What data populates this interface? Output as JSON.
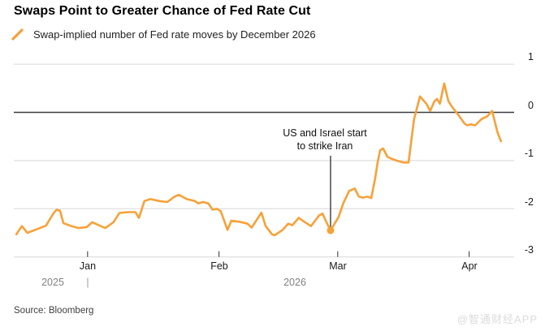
{
  "header": {
    "title": "Swaps Point to Greater Chance of Fed Rate Cut",
    "legend_label": "Swap-implied number of Fed rate moves by December 2026"
  },
  "colors": {
    "line": "#F7A139",
    "grid": "#D8D8D8",
    "zero_line": "#393B3D",
    "tick": "#2E2E2E",
    "annotation_line": "#3A3A3A"
  },
  "chart_data": {
    "type": "line",
    "title": "Swaps Point to Greater Chance of Fed Rate Cut",
    "series_name": "Swap-implied number of Fed rate moves by December 2026",
    "xlabel": "",
    "ylabel": "Swap-implied number of Fed rate moves",
    "x_unit": "days relative to Jan 1, 2026",
    "xlim": [
      -17.4,
      100.6
    ],
    "ylim": [
      -3.0,
      1.372
    ],
    "grid": "horizontal",
    "legend_position": "top-left",
    "y_ticks": [
      {
        "v": 1,
        "label": "1"
      },
      {
        "v": 0,
        "label": "0"
      },
      {
        "v": -1,
        "label": "-1"
      },
      {
        "v": -2,
        "label": "-2"
      },
      {
        "v": -3,
        "label": "-3"
      }
    ],
    "x_ticks": [
      {
        "d": 0,
        "label": "Jan"
      },
      {
        "d": 31,
        "label": "Feb"
      },
      {
        "d": 59,
        "label": "Mar"
      },
      {
        "d": 90,
        "label": "Apr"
      }
    ],
    "year_labels": [
      {
        "text": "2025"
      },
      {
        "text": "2026"
      }
    ],
    "year_divider": "|",
    "annotation": {
      "text": "US and Israel start\nto strike Iran",
      "d": 57.3,
      "v": -2.45,
      "line_top_v": -0.9
    },
    "points": [
      [
        -16.8,
        -2.53
      ],
      [
        -15.5,
        -2.36
      ],
      [
        -14.2,
        -2.5
      ],
      [
        -12.1,
        -2.43
      ],
      [
        -9.8,
        -2.35
      ],
      [
        -8.0,
        -2.09
      ],
      [
        -7.3,
        -2.02
      ],
      [
        -6.5,
        -2.04
      ],
      [
        -5.7,
        -2.3
      ],
      [
        -3.8,
        -2.36
      ],
      [
        -2.1,
        -2.4
      ],
      [
        -0.2,
        -2.38
      ],
      [
        1.1,
        -2.28
      ],
      [
        3.1,
        -2.36
      ],
      [
        4.2,
        -2.4
      ],
      [
        6.1,
        -2.28
      ],
      [
        7.5,
        -2.09
      ],
      [
        9.4,
        -2.07
      ],
      [
        11.3,
        -2.07
      ],
      [
        12.1,
        -2.19
      ],
      [
        13.4,
        -1.84
      ],
      [
        14.8,
        -1.8
      ],
      [
        16.9,
        -1.84
      ],
      [
        18.8,
        -1.86
      ],
      [
        20.5,
        -1.75
      ],
      [
        21.5,
        -1.71
      ],
      [
        23.4,
        -1.8
      ],
      [
        25.3,
        -1.84
      ],
      [
        26.1,
        -1.89
      ],
      [
        27.2,
        -1.86
      ],
      [
        28.5,
        -1.89
      ],
      [
        29.5,
        -2.02
      ],
      [
        30.5,
        -2.0
      ],
      [
        31.4,
        -2.05
      ],
      [
        33.0,
        -2.44
      ],
      [
        33.9,
        -2.25
      ],
      [
        35.8,
        -2.27
      ],
      [
        37.7,
        -2.31
      ],
      [
        38.7,
        -2.39
      ],
      [
        41.0,
        -2.08
      ],
      [
        42.0,
        -2.36
      ],
      [
        43.5,
        -2.53
      ],
      [
        44.1,
        -2.55
      ],
      [
        46.0,
        -2.44
      ],
      [
        47.3,
        -2.31
      ],
      [
        48.3,
        -2.34
      ],
      [
        49.8,
        -2.19
      ],
      [
        51.1,
        -2.27
      ],
      [
        52.7,
        -2.36
      ],
      [
        54.6,
        -2.14
      ],
      [
        55.4,
        -2.1
      ],
      [
        56.5,
        -2.31
      ],
      [
        57.3,
        -2.45
      ],
      [
        59.2,
        -2.17
      ],
      [
        60.3,
        -1.89
      ],
      [
        61.7,
        -1.63
      ],
      [
        63.0,
        -1.58
      ],
      [
        64.0,
        -1.75
      ],
      [
        64.9,
        -1.77
      ],
      [
        66.1,
        -1.75
      ],
      [
        66.9,
        -1.78
      ],
      [
        67.8,
        -1.38
      ],
      [
        68.4,
        -1.04
      ],
      [
        69.0,
        -0.79
      ],
      [
        69.7,
        -0.75
      ],
      [
        70.7,
        -0.92
      ],
      [
        71.6,
        -0.96
      ],
      [
        73.2,
        -1.01
      ],
      [
        74.5,
        -1.04
      ],
      [
        75.7,
        -1.04
      ],
      [
        77.0,
        -0.14
      ],
      [
        78.4,
        0.33
      ],
      [
        79.9,
        0.18
      ],
      [
        80.8,
        0.03
      ],
      [
        81.8,
        0.23
      ],
      [
        82.4,
        0.28
      ],
      [
        83.1,
        0.18
      ],
      [
        84.1,
        0.6
      ],
      [
        85.1,
        0.23
      ],
      [
        86.0,
        0.11
      ],
      [
        87.5,
        -0.06
      ],
      [
        88.9,
        -0.23
      ],
      [
        89.5,
        -0.27
      ],
      [
        90.4,
        -0.25
      ],
      [
        91.4,
        -0.27
      ],
      [
        92.9,
        -0.14
      ],
      [
        94.3,
        -0.08
      ],
      [
        95.4,
        0.03
      ],
      [
        96.7,
        -0.42
      ],
      [
        97.5,
        -0.6
      ]
    ]
  },
  "footer": {
    "source": "Source: Bloomberg",
    "watermark": "@智通财经APP"
  }
}
